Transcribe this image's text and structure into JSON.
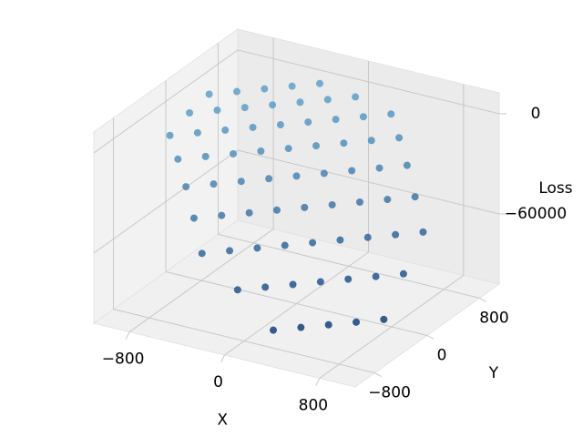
{
  "chart_data": {
    "type": "scatter3d",
    "x_label": "X",
    "y_label": "Y",
    "z_label": "Loss",
    "x": [
      -900,
      -900,
      -900,
      -600,
      -600,
      -600,
      -600,
      -600,
      -300,
      -300,
      -300,
      -300,
      -300,
      -300,
      -300,
      0,
      0,
      0,
      0,
      0,
      0,
      0,
      300,
      300,
      300,
      300,
      300,
      300,
      300,
      600,
      600,
      600,
      600,
      600,
      900,
      900,
      900,
      -750,
      -750,
      -750,
      -750,
      -450,
      -450,
      -450,
      -450,
      -450,
      -450,
      -150,
      -150,
      -150,
      -150,
      -150,
      -150,
      150,
      150,
      150,
      150,
      150,
      150,
      450,
      450,
      450,
      450,
      450,
      450,
      750,
      750,
      750,
      750
    ],
    "y": [
      -300,
      0,
      300,
      -600,
      -300,
      0,
      300,
      600,
      -900,
      -600,
      -300,
      0,
      300,
      600,
      900,
      -900,
      -600,
      -300,
      0,
      300,
      600,
      900,
      -900,
      -600,
      -300,
      0,
      300,
      600,
      900,
      -600,
      -300,
      0,
      300,
      600,
      -300,
      0,
      300,
      -450,
      -150,
      150,
      450,
      -750,
      -450,
      -150,
      150,
      450,
      750,
      -750,
      -450,
      -150,
      150,
      450,
      750,
      -750,
      -450,
      -150,
      150,
      450,
      750,
      -750,
      -450,
      -150,
      150,
      450,
      750,
      -450,
      -150,
      150,
      450
    ],
    "z": [
      -8482,
      -3382,
      -586,
      -25592,
      -15885,
      -8482,
      -3382,
      -586,
      -51919,
      -37604,
      -25592,
      -15885,
      -8482,
      -3382,
      -586,
      -68539,
      -51919,
      -37604,
      -25592,
      -15885,
      -8482,
      -3382,
      -87462,
      -68539,
      -51919,
      -37604,
      -25592,
      -15885,
      -8482,
      -87462,
      -68539,
      -51919,
      -37604,
      -25592,
      -87462,
      -68539,
      -51919,
      -15885,
      -8482,
      -3382,
      -586,
      -37604,
      -25592,
      -15885,
      -8482,
      -3382,
      -586,
      -51919,
      -37604,
      -25592,
      -15885,
      -8482,
      -3382,
      -68539,
      -51919,
      -37604,
      -25592,
      -15885,
      -8482,
      -87462,
      -68539,
      -51919,
      -37604,
      -25592,
      -15885,
      -87462,
      -68539,
      -51919,
      -37604
    ],
    "xlim": [
      -1100,
      1100
    ],
    "ylim": [
      -1100,
      1100
    ],
    "zlim": [
      -102000,
      12500
    ],
    "xticks": [
      {
        "value": -800,
        "label": "−800"
      },
      0,
      800
    ],
    "yticks": [
      {
        "value": -800,
        "label": "−800"
      },
      0,
      800
    ],
    "zticks": [
      {
        "value": -60000,
        "label": "−60000"
      },
      0
    ],
    "colors": {
      "low": "#08306b",
      "high": "#6baed6"
    },
    "grid": true
  }
}
